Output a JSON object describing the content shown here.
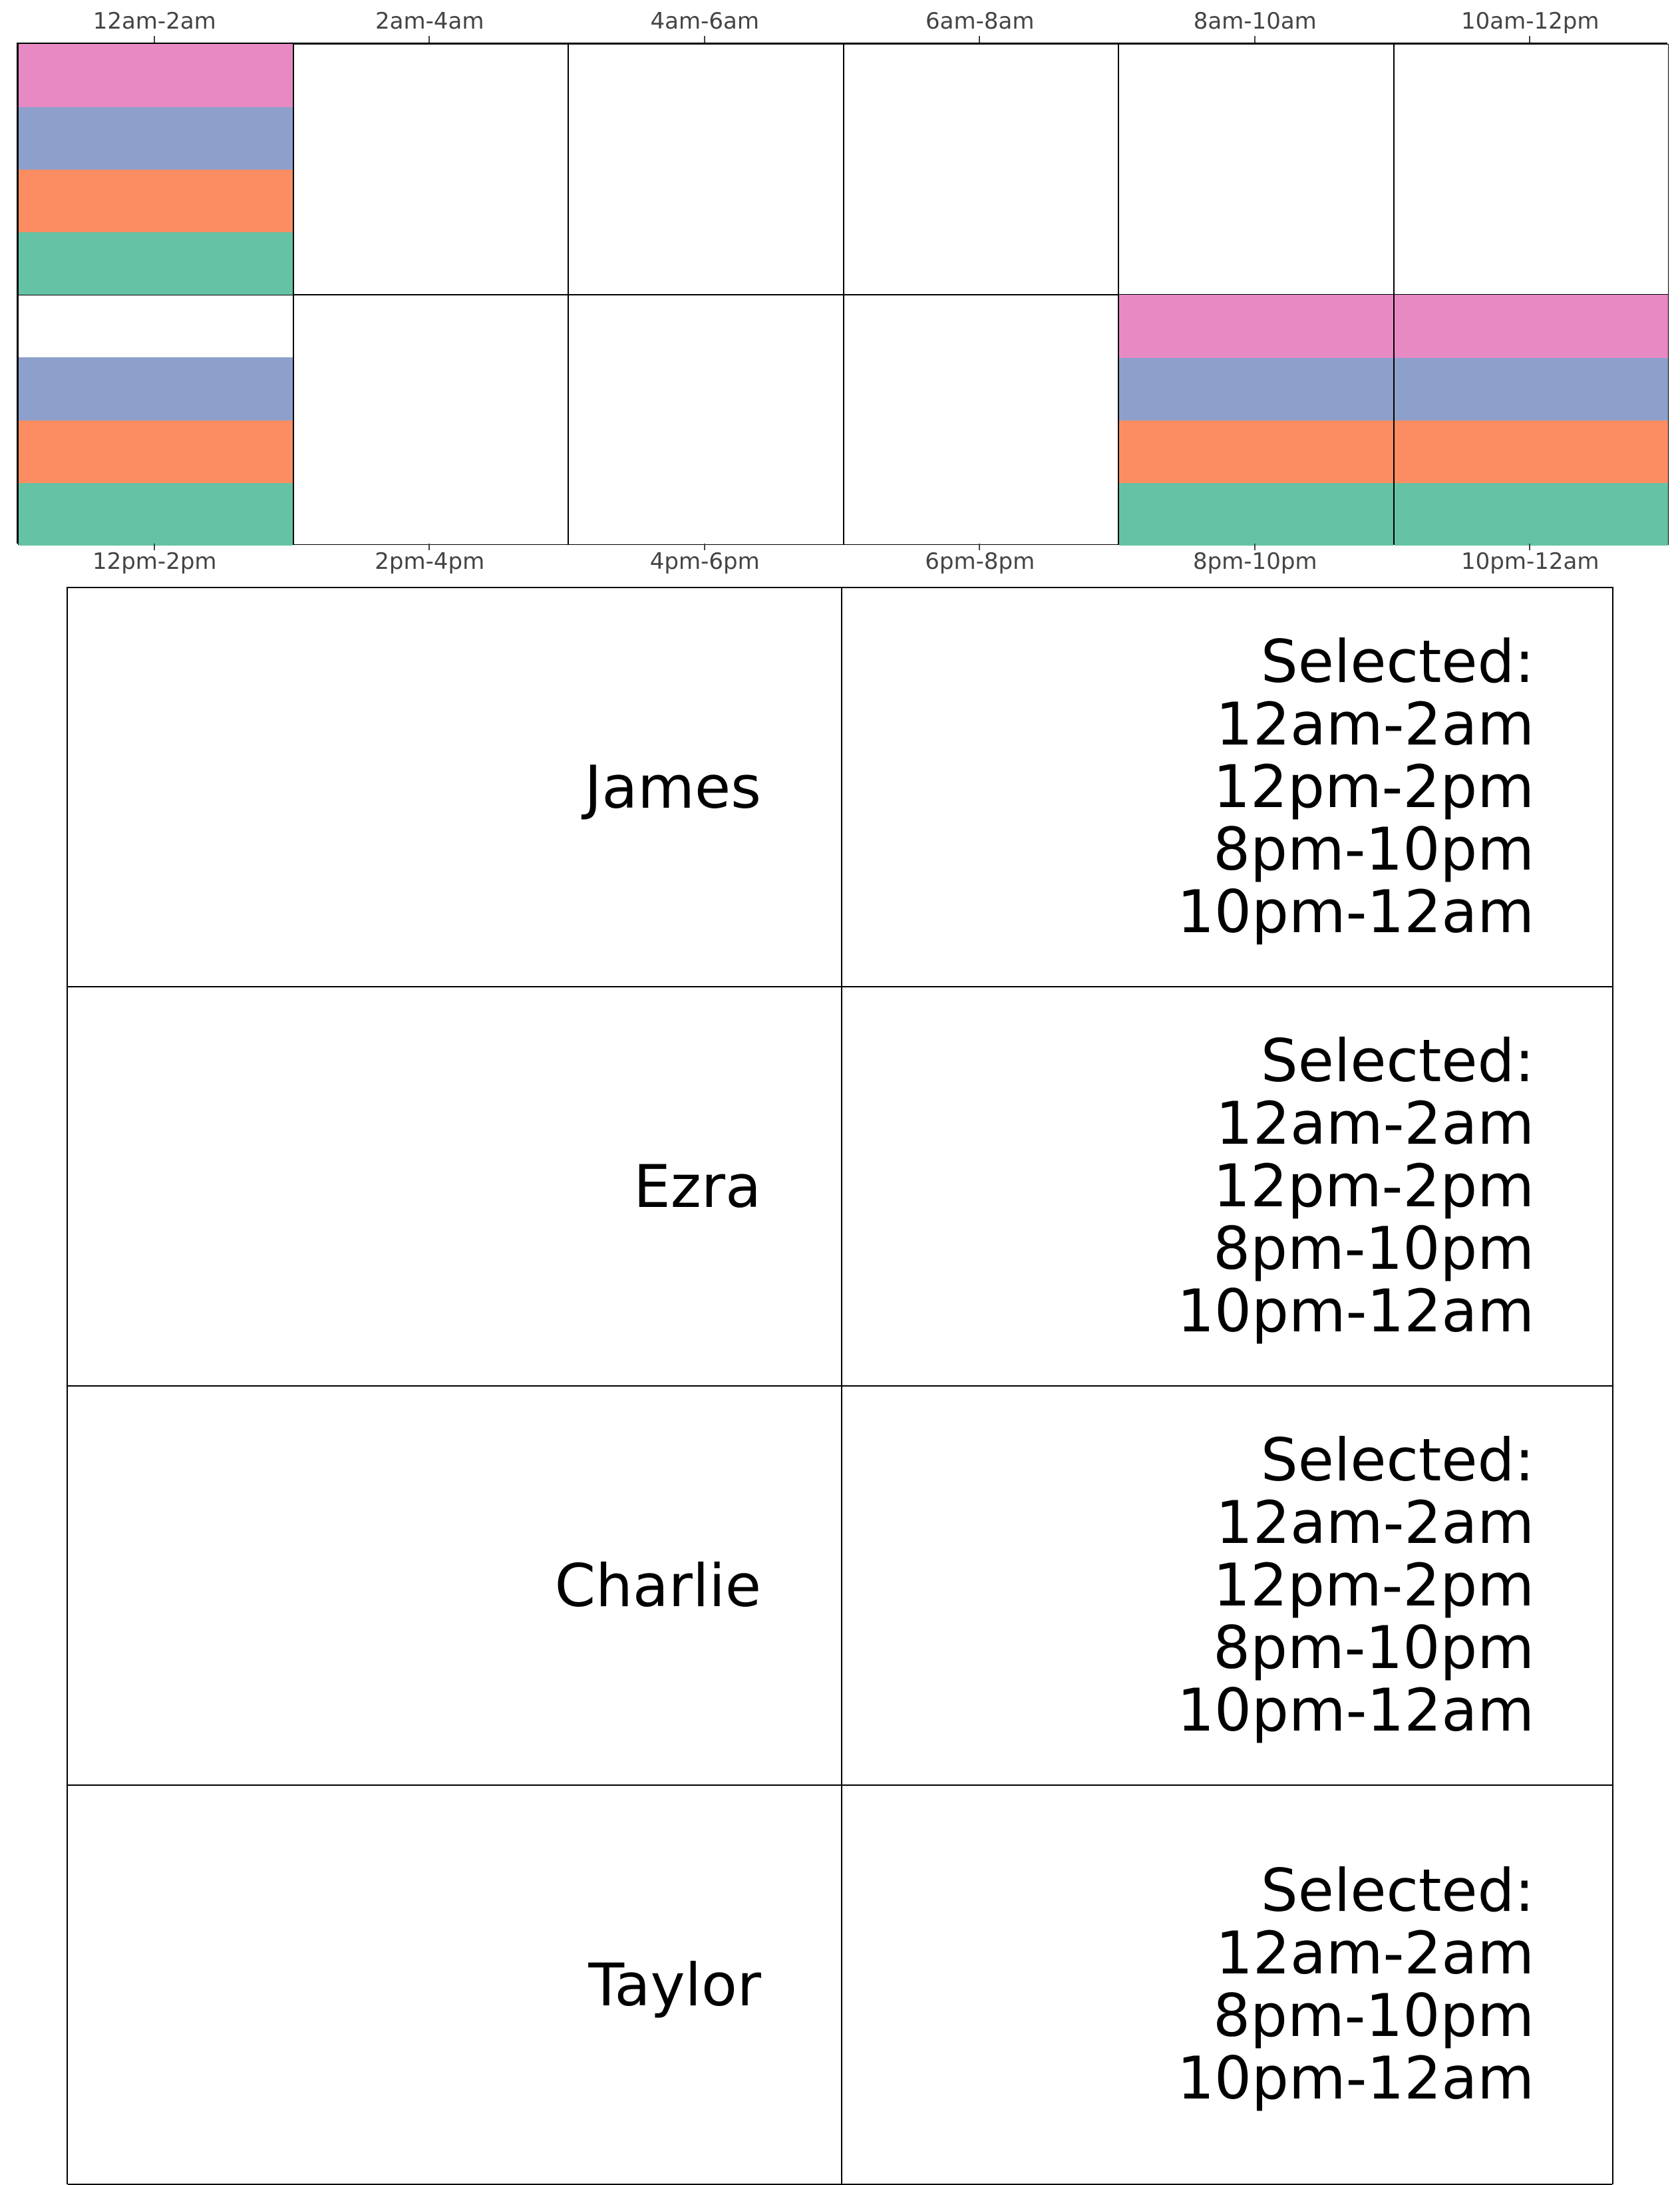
{
  "grid": {
    "top_labels": [
      "12am-2am",
      "2am-4am",
      "4am-6am",
      "6am-8am",
      "8am-10am",
      "10am-12pm"
    ],
    "bottom_labels": [
      "12pm-2pm",
      "2pm-4pm",
      "4pm-6pm",
      "6pm-8pm",
      "8pm-10pm",
      "10pm-12am"
    ],
    "person_colors": {
      "James": "#66c2a5",
      "Ezra": "#fc8d62",
      "Charlie": "#8da0cb",
      "Taylor": "#e78ac3"
    },
    "band_order_bottom_to_top": [
      "James",
      "Ezra",
      "Charlie",
      "Taylor"
    ],
    "selections": {
      "12am-2am": [
        "James",
        "Ezra",
        "Charlie",
        "Taylor"
      ],
      "12pm-2pm": [
        "James",
        "Ezra",
        "Charlie"
      ],
      "8pm-10pm": [
        "James",
        "Ezra",
        "Charlie",
        "Taylor"
      ],
      "10pm-12am": [
        "James",
        "Ezra",
        "Charlie",
        "Taylor"
      ]
    }
  },
  "people": [
    {
      "name": "James",
      "selected_header": "Selected:",
      "selected": [
        "12am-2am",
        "12pm-2pm",
        "8pm-10pm",
        "10pm-12am"
      ]
    },
    {
      "name": "Ezra",
      "selected_header": "Selected:",
      "selected": [
        "12am-2am",
        "12pm-2pm",
        "8pm-10pm",
        "10pm-12am"
      ]
    },
    {
      "name": "Charlie",
      "selected_header": "Selected:",
      "selected": [
        "12am-2am",
        "12pm-2pm",
        "8pm-10pm",
        "10pm-12am"
      ]
    },
    {
      "name": "Taylor",
      "selected_header": "Selected:",
      "selected": [
        "12am-2am",
        "8pm-10pm",
        "10pm-12am"
      ]
    }
  ]
}
